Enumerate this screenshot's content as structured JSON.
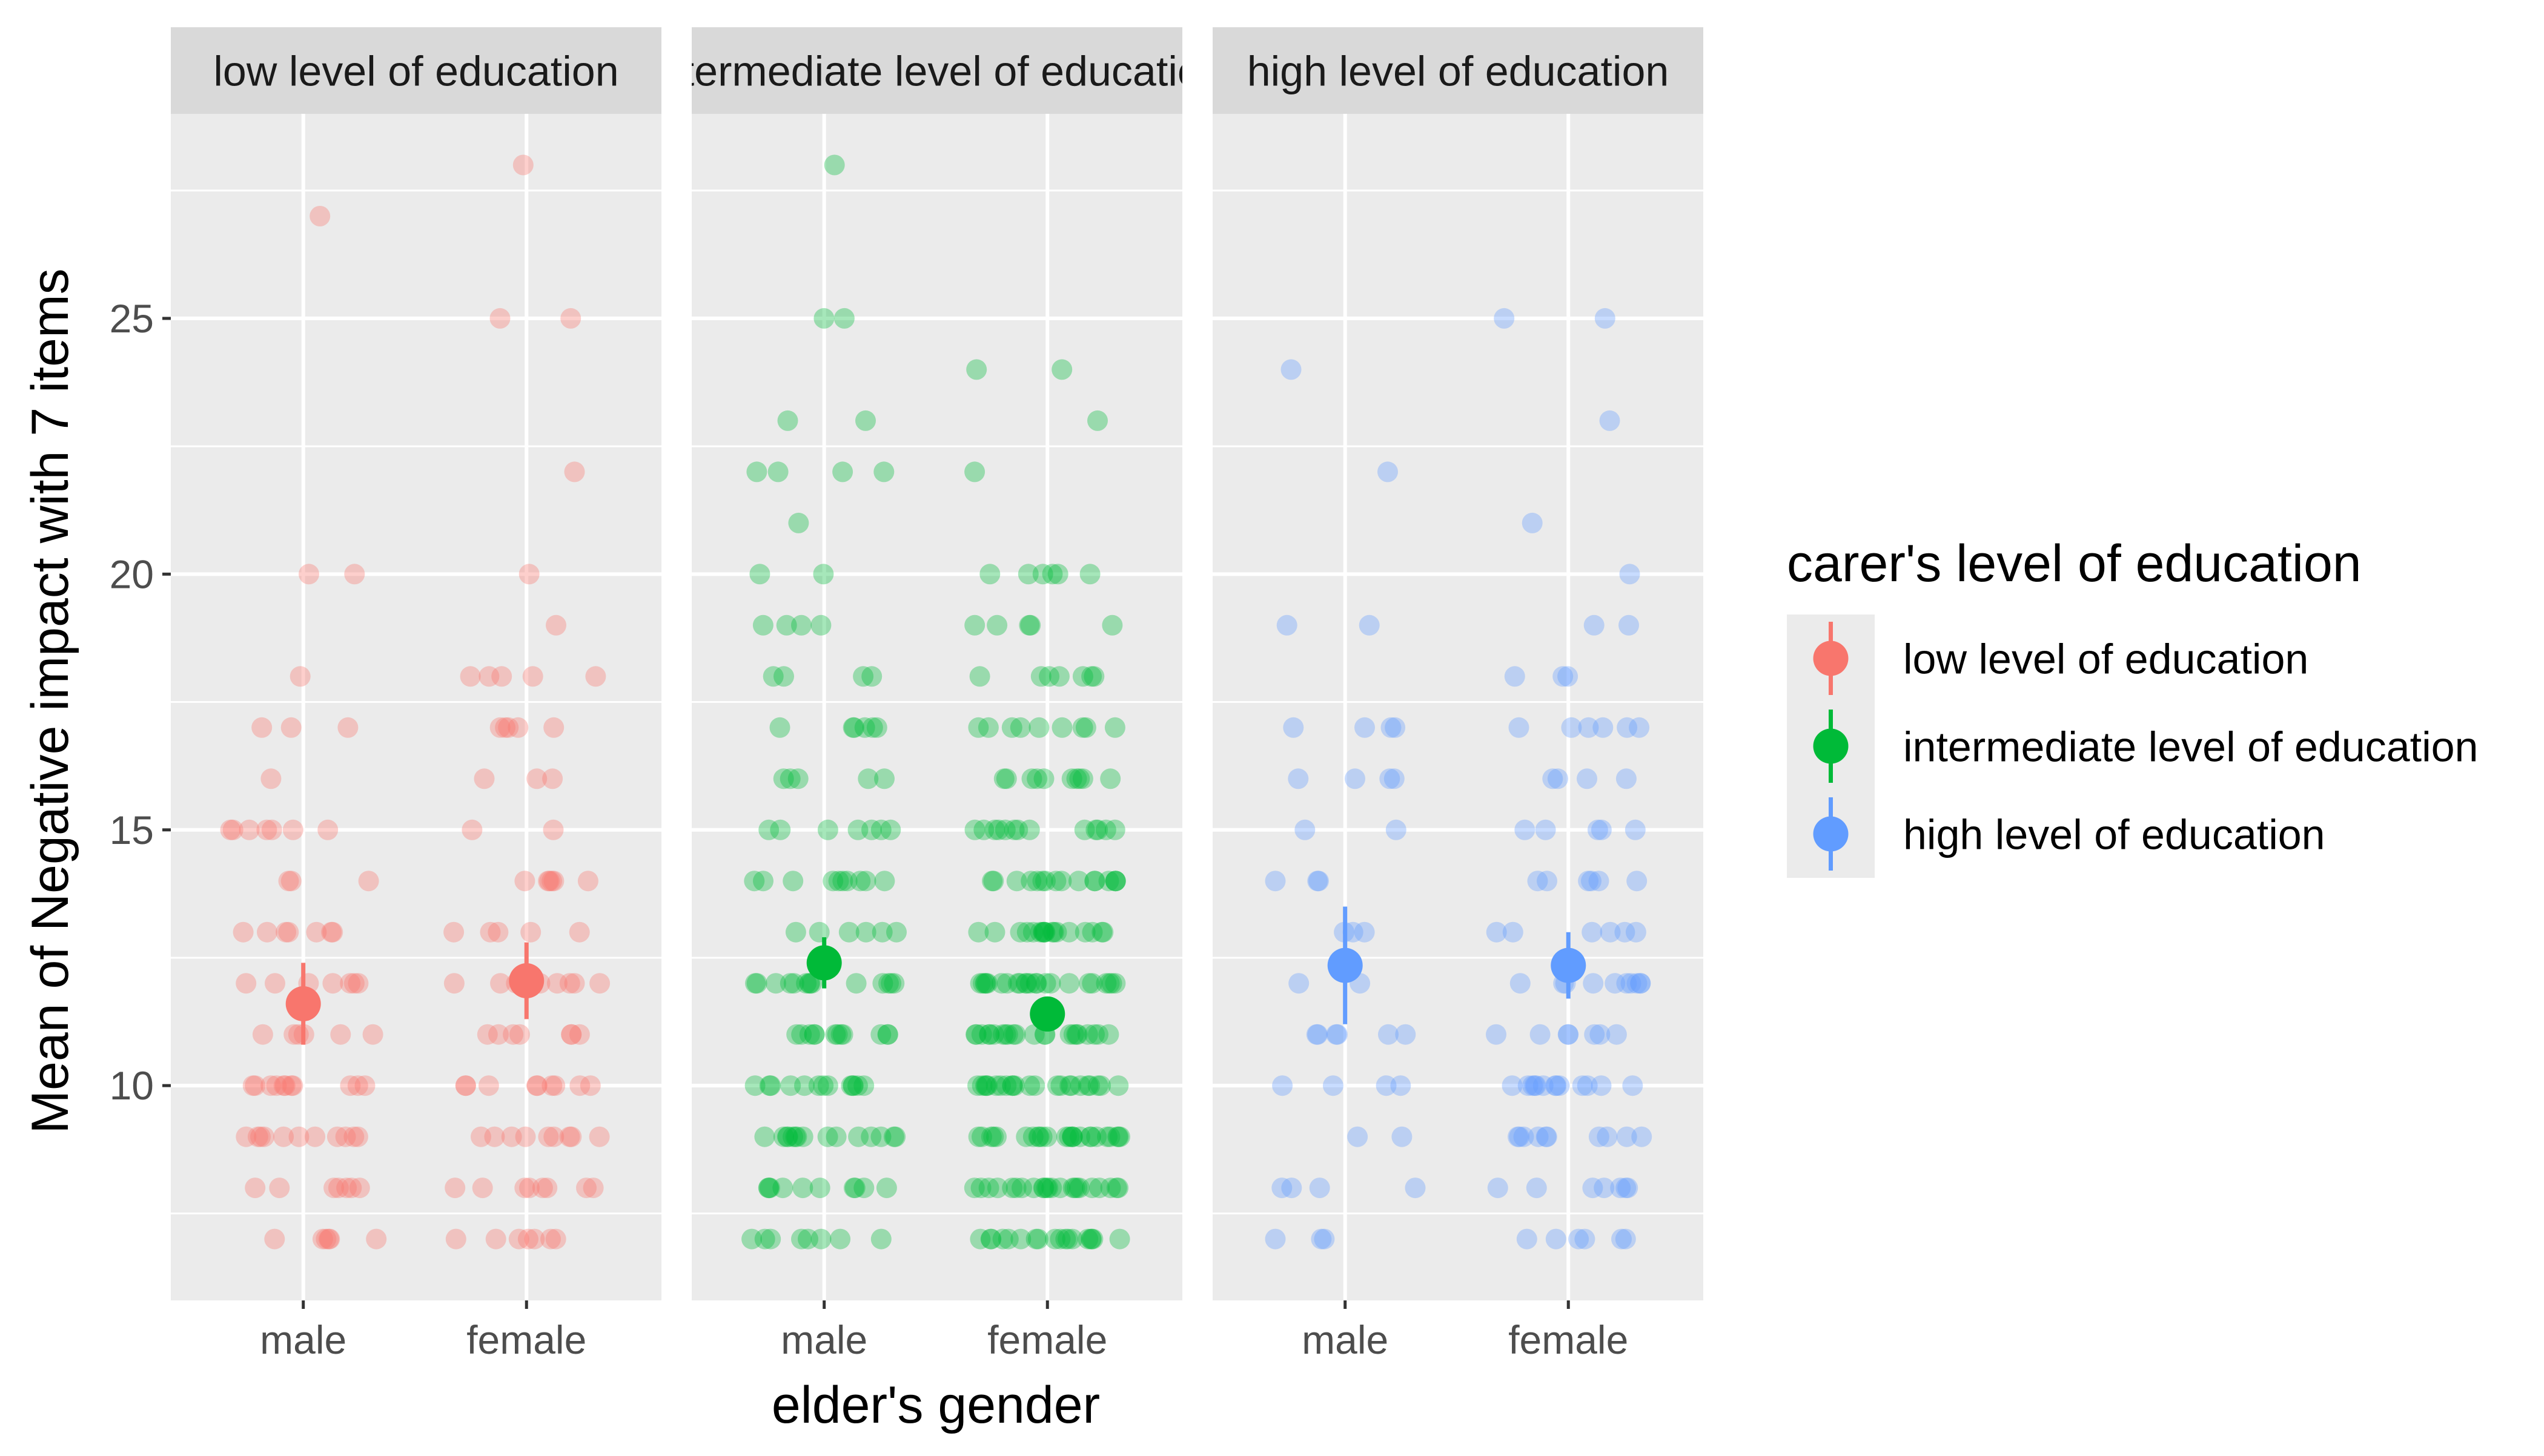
{
  "chart_data": {
    "type": "scatter",
    "title": "",
    "xlabel": "elder's gender",
    "ylabel": "Mean of Negative impact with 7 items",
    "categories": [
      "male",
      "female"
    ],
    "facets": [
      "low level of education",
      "intermediate level of education",
      "high level of education"
    ],
    "y_ticks": [
      10,
      15,
      20,
      25
    ],
    "ylim": [
      5.8,
      29.0
    ],
    "grid": true,
    "legend": {
      "title": "carer's level of education",
      "position": "right",
      "entries": [
        "low level of education",
        "intermediate level of education",
        "high level of education"
      ]
    },
    "colors": {
      "low level of education": "#F8766D",
      "intermediate level of education": "#00BA38",
      "high level of education": "#619CFF"
    },
    "means": [
      {
        "facet": "low level of education",
        "gender": "male",
        "mean": 11.6,
        "lower": 10.8,
        "upper": 12.4
      },
      {
        "facet": "low level of education",
        "gender": "female",
        "mean": 12.05,
        "lower": 11.3,
        "upper": 12.8
      },
      {
        "facet": "intermediate level of education",
        "gender": "male",
        "mean": 12.4,
        "lower": 11.9,
        "upper": 12.9
      },
      {
        "facet": "intermediate level of education",
        "gender": "female",
        "mean": 11.4,
        "lower": 11.1,
        "upper": 11.7
      },
      {
        "facet": "high level of education",
        "gender": "male",
        "mean": 12.35,
        "lower": 11.2,
        "upper": 13.5
      },
      {
        "facet": "high level of education",
        "gender": "female",
        "mean": 12.35,
        "lower": 11.7,
        "upper": 13.0
      }
    ],
    "points": [
      {
        "facet": "low level of education",
        "gender": "male",
        "values": [
          7,
          7,
          7,
          7,
          7,
          7,
          8,
          8,
          8,
          8,
          8,
          8,
          8,
          9,
          9,
          9,
          9,
          9,
          9,
          9,
          9,
          9,
          9,
          9,
          10,
          10,
          10,
          10,
          10,
          10,
          10,
          10,
          10,
          10,
          10,
          11,
          11,
          11,
          11,
          11,
          11,
          12,
          12,
          12,
          12,
          12,
          12,
          12,
          13,
          13,
          13,
          13,
          13,
          13,
          13,
          14,
          14,
          14,
          15,
          15,
          15,
          15,
          15,
          15,
          15,
          16,
          17,
          17,
          17,
          18,
          20,
          20,
          27
        ]
      },
      {
        "facet": "low level of education",
        "gender": "female",
        "values": [
          7,
          7,
          7,
          7,
          7,
          7,
          7,
          8,
          8,
          8,
          8,
          8,
          8,
          8,
          8,
          9,
          9,
          9,
          9,
          9,
          9,
          9,
          9,
          9,
          10,
          10,
          10,
          10,
          10,
          10,
          10,
          10,
          10,
          11,
          11,
          11,
          11,
          11,
          11,
          11,
          12,
          12,
          12,
          12,
          12,
          12,
          12,
          12,
          13,
          13,
          13,
          13,
          13,
          14,
          14,
          14,
          14,
          14,
          14,
          15,
          15,
          16,
          16,
          16,
          17,
          17,
          17,
          17,
          17,
          18,
          18,
          18,
          18,
          18,
          19,
          20,
          22,
          25,
          25,
          28
        ]
      },
      {
        "facet": "intermediate level of education",
        "gender": "male",
        "values": [
          7,
          7,
          7,
          7,
          7,
          7,
          7,
          7,
          8,
          8,
          8,
          8,
          8,
          8,
          8,
          8,
          8,
          8,
          9,
          9,
          9,
          9,
          9,
          9,
          9,
          9,
          9,
          9,
          9,
          9,
          9,
          9,
          9,
          10,
          10,
          10,
          10,
          10,
          10,
          10,
          10,
          10,
          10,
          10,
          10,
          10,
          11,
          11,
          11,
          11,
          11,
          11,
          11,
          11,
          11,
          11,
          11,
          11,
          12,
          12,
          12,
          12,
          12,
          12,
          12,
          12,
          12,
          12,
          12,
          12,
          12,
          12,
          13,
          13,
          13,
          13,
          13,
          13,
          14,
          14,
          14,
          14,
          14,
          14,
          14,
          14,
          14,
          14,
          15,
          15,
          15,
          15,
          15,
          15,
          15,
          16,
          16,
          16,
          16,
          16,
          17,
          17,
          17,
          17,
          17,
          17,
          18,
          18,
          18,
          18,
          19,
          19,
          19,
          19,
          20,
          20,
          21,
          22,
          22,
          22,
          22,
          23,
          23,
          25,
          25,
          28
        ]
      },
      {
        "facet": "intermediate level of education",
        "gender": "female",
        "values": [
          7,
          7,
          7,
          7,
          7,
          7,
          7,
          7,
          7,
          7,
          7,
          7,
          7,
          7,
          7,
          7,
          7,
          7,
          8,
          8,
          8,
          8,
          8,
          8,
          8,
          8,
          8,
          8,
          8,
          8,
          8,
          8,
          8,
          8,
          8,
          8,
          8,
          8,
          8,
          8,
          8,
          9,
          9,
          9,
          9,
          9,
          9,
          9,
          9,
          9,
          9,
          9,
          9,
          9,
          9,
          9,
          9,
          9,
          9,
          9,
          9,
          9,
          9,
          9,
          9,
          9,
          10,
          10,
          10,
          10,
          10,
          10,
          10,
          10,
          10,
          10,
          10,
          10,
          10,
          10,
          10,
          10,
          10,
          10,
          10,
          10,
          10,
          10,
          10,
          11,
          11,
          11,
          11,
          11,
          11,
          11,
          11,
          11,
          11,
          11,
          11,
          11,
          11,
          11,
          11,
          11,
          11,
          11,
          11,
          11,
          11,
          12,
          12,
          12,
          12,
          12,
          12,
          12,
          12,
          12,
          12,
          12,
          12,
          12,
          12,
          12,
          12,
          12,
          12,
          12,
          12,
          12,
          12,
          12,
          13,
          13,
          13,
          13,
          13,
          13,
          13,
          13,
          13,
          13,
          13,
          13,
          13,
          13,
          13,
          13,
          13,
          13,
          14,
          14,
          14,
          14,
          14,
          14,
          14,
          14,
          14,
          14,
          14,
          14,
          14,
          14,
          14,
          14,
          15,
          15,
          15,
          15,
          15,
          15,
          15,
          15,
          15,
          15,
          15,
          15,
          15,
          16,
          16,
          16,
          16,
          16,
          16,
          16,
          16,
          16,
          16,
          17,
          17,
          17,
          17,
          17,
          17,
          17,
          17,
          17,
          18,
          18,
          18,
          18,
          18,
          18,
          18,
          19,
          19,
          19,
          19,
          19,
          20,
          20,
          20,
          20,
          20,
          20,
          22,
          23,
          24,
          24
        ]
      },
      {
        "facet": "high level of education",
        "gender": "male",
        "values": [
          7,
          7,
          7,
          8,
          8,
          8,
          8,
          9,
          9,
          10,
          10,
          10,
          10,
          11,
          11,
          11,
          11,
          11,
          11,
          12,
          12,
          13,
          13,
          13,
          14,
          14,
          14,
          15,
          15,
          16,
          16,
          16,
          16,
          17,
          17,
          17,
          17,
          19,
          19,
          22,
          24
        ]
      },
      {
        "facet": "high level of education",
        "gender": "female",
        "values": [
          7,
          7,
          7,
          7,
          7,
          7,
          8,
          8,
          8,
          8,
          8,
          8,
          8,
          9,
          9,
          9,
          9,
          9,
          9,
          9,
          9,
          9,
          9,
          10,
          10,
          10,
          10,
          10,
          10,
          10,
          10,
          10,
          10,
          10,
          10,
          10,
          11,
          11,
          11,
          11,
          11,
          11,
          11,
          12,
          12,
          12,
          12,
          12,
          12,
          12,
          12,
          12,
          12,
          13,
          13,
          13,
          13,
          13,
          13,
          14,
          14,
          14,
          14,
          14,
          14,
          15,
          15,
          15,
          15,
          15,
          16,
          16,
          16,
          16,
          17,
          17,
          17,
          17,
          17,
          17,
          18,
          18,
          18,
          19,
          19,
          20,
          21,
          23,
          25,
          25
        ]
      }
    ]
  }
}
